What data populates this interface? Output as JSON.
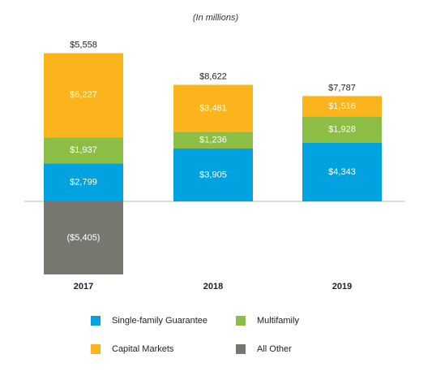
{
  "chart_data": {
    "type": "stacked_bar",
    "subtitle": "(In millions)",
    "categories": [
      "2017",
      "2018",
      "2019"
    ],
    "series": [
      {
        "name": "Single-family Guarantee",
        "color": "#00a3e0",
        "values": [
          2799,
          3905,
          4343
        ],
        "value_labels": [
          "$2,799",
          "$3,905",
          "$4,343"
        ]
      },
      {
        "name": "Multifamily",
        "color": "#8cbd45",
        "values": [
          1937,
          1236,
          1928
        ],
        "value_labels": [
          "$1,937",
          "$1,236",
          "$1,928"
        ]
      },
      {
        "name": "Capital Markets",
        "color": "#fbb41c",
        "values": [
          6227,
          3481,
          1516
        ],
        "value_labels": [
          "$6,227",
          "$3,481",
          "$1,516"
        ]
      },
      {
        "name": "All Other",
        "color": "#77776f",
        "values": [
          -5405,
          null,
          null
        ],
        "value_labels": [
          "($5,405)",
          null,
          null
        ]
      }
    ],
    "totals": [
      5558,
      8622,
      7787
    ],
    "total_labels": [
      "$5,558",
      "$8,622",
      "$7,787"
    ]
  }
}
